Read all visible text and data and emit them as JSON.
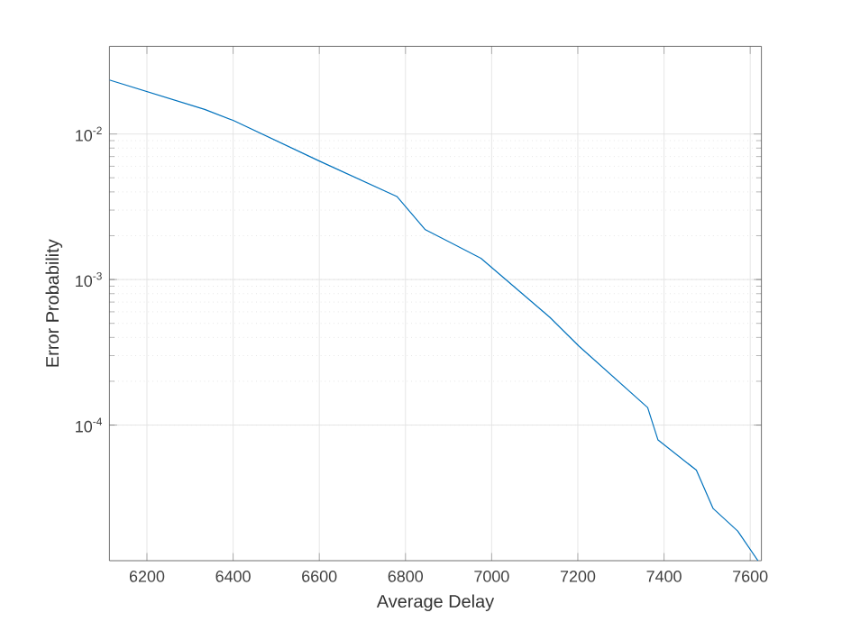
{
  "chart_data": {
    "type": "line",
    "xlabel": "Average Delay",
    "ylabel": "Error Probability",
    "log": "y",
    "grid": true,
    "xlim": [
      6113,
      7626
    ],
    "xticks": [
      6200,
      6400,
      6600,
      6800,
      7000,
      7200,
      7400,
      7600
    ],
    "ylim": [
      1.17e-05,
      0.04
    ],
    "yticks": [
      {
        "value": 0.0001,
        "label": "10$^{-4}$"
      },
      {
        "value": 0.001,
        "label": "10$^{-3}$"
      },
      {
        "value": 0.01,
        "label": "10$^{-2}$"
      }
    ],
    "x": [
      6113,
      6334,
      6400,
      6600,
      6780,
      6846,
      6975,
      7135,
      7202,
      7362,
      7386,
      7475,
      7514,
      7571,
      7618
    ],
    "series": [
      {
        "color": "#0072bd",
        "values": [
          0.0235,
          0.01475,
          0.0124,
          0.00652,
          0.00372,
          0.0022,
          0.0014,
          0.00055,
          0.00035,
          0.000132,
          7.9e-05,
          4.9e-05,
          2.67e-05,
          1.87e-05,
          1.17e-05
        ]
      }
    ]
  }
}
